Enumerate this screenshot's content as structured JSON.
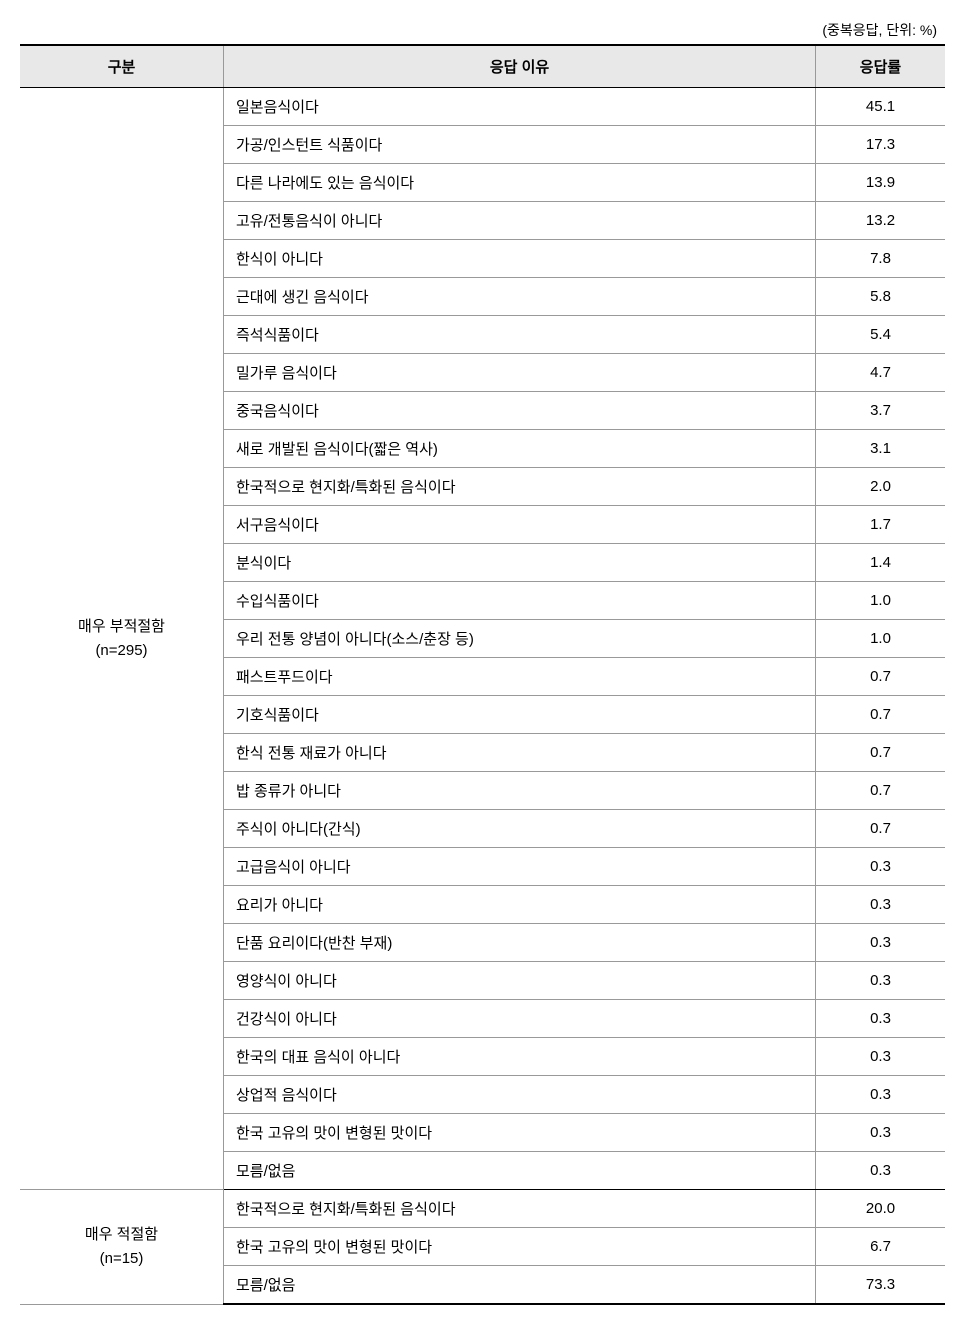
{
  "caption": "(중복응답, 단위: %)",
  "headers": {
    "category": "구분",
    "reason": "응답 이유",
    "rate": "응답률"
  },
  "groups": [
    {
      "label": "매우 부적절함",
      "sublabel": "(n=295)",
      "rows": [
        {
          "reason": "일본음식이다",
          "rate": "45.1"
        },
        {
          "reason": "가공/인스턴트 식품이다",
          "rate": "17.3"
        },
        {
          "reason": "다른 나라에도 있는 음식이다",
          "rate": "13.9"
        },
        {
          "reason": "고유/전통음식이 아니다",
          "rate": "13.2"
        },
        {
          "reason": "한식이 아니다",
          "rate": "7.8"
        },
        {
          "reason": "근대에 생긴 음식이다",
          "rate": "5.8"
        },
        {
          "reason": "즉석식품이다",
          "rate": "5.4"
        },
        {
          "reason": "밀가루 음식이다",
          "rate": "4.7"
        },
        {
          "reason": "중국음식이다",
          "rate": "3.7"
        },
        {
          "reason": "새로 개발된 음식이다(짧은 역사)",
          "rate": "3.1"
        },
        {
          "reason": "한국적으로 현지화/특화된 음식이다",
          "rate": "2.0"
        },
        {
          "reason": "서구음식이다",
          "rate": "1.7"
        },
        {
          "reason": "분식이다",
          "rate": "1.4"
        },
        {
          "reason": "수입식품이다",
          "rate": "1.0"
        },
        {
          "reason": "우리 전통 양념이 아니다(소스/춘장 등)",
          "rate": "1.0"
        },
        {
          "reason": "패스트푸드이다",
          "rate": "0.7"
        },
        {
          "reason": "기호식품이다",
          "rate": "0.7"
        },
        {
          "reason": "한식 전통 재료가 아니다",
          "rate": "0.7"
        },
        {
          "reason": "밥 종류가 아니다",
          "rate": "0.7"
        },
        {
          "reason": "주식이 아니다(간식)",
          "rate": "0.7"
        },
        {
          "reason": "고급음식이 아니다",
          "rate": "0.3"
        },
        {
          "reason": "요리가 아니다",
          "rate": "0.3"
        },
        {
          "reason": "단품 요리이다(반찬 부재)",
          "rate": "0.3"
        },
        {
          "reason": "영양식이 아니다",
          "rate": "0.3"
        },
        {
          "reason": "건강식이 아니다",
          "rate": "0.3"
        },
        {
          "reason": "한국의 대표 음식이 아니다",
          "rate": "0.3"
        },
        {
          "reason": "상업적 음식이다",
          "rate": "0.3"
        },
        {
          "reason": "한국 고유의 맛이 변형된 맛이다",
          "rate": "0.3"
        },
        {
          "reason": "모름/없음",
          "rate": "0.3"
        }
      ]
    },
    {
      "label": "매우 적절함",
      "sublabel": "(n=15)",
      "rows": [
        {
          "reason": "한국적으로 현지화/특화된 음식이다",
          "rate": "20.0"
        },
        {
          "reason": "한국 고유의 맛이 변형된 맛이다",
          "rate": "6.7"
        },
        {
          "reason": "모름/없음",
          "rate": "73.3"
        }
      ]
    }
  ]
}
